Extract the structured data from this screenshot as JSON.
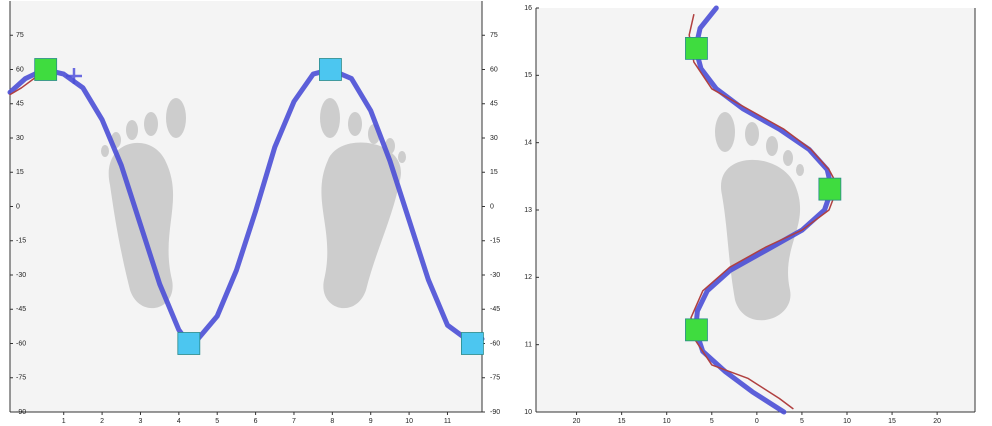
{
  "chart_data": [
    {
      "type": "line",
      "orientation": "horizontal",
      "xlim": [
        -0.4,
        11.9
      ],
      "ylim": [
        -90,
        90
      ],
      "xticks": [
        1,
        2,
        3,
        4,
        5,
        6,
        7,
        8,
        9,
        10,
        11
      ],
      "yticks": [
        -90,
        -75,
        -60,
        -45,
        -30,
        -15,
        0,
        15,
        30,
        45,
        60,
        75
      ],
      "series": [
        {
          "color": "#4b4fd6",
          "x": [
            -0.4,
            0,
            0.5,
            1,
            1.5,
            2,
            2.5,
            3,
            3.5,
            4,
            4.26,
            4.5,
            5,
            5.5,
            6,
            6.5,
            7,
            7.5,
            7.95,
            8.5,
            9,
            9.5,
            10,
            10.5,
            11,
            11.65,
            11.9
          ],
          "values": [
            50,
            56,
            60,
            58,
            52,
            38,
            18,
            -8,
            -34,
            -54,
            -60,
            -58,
            -48,
            -28,
            -2,
            26,
            46,
            58,
            60,
            56,
            42,
            20,
            -6,
            -32,
            -52,
            -60,
            -58
          ]
        },
        {
          "color": "#b04040",
          "x": [
            -0.4,
            -0.1,
            0.3
          ],
          "values": [
            49,
            52,
            57
          ]
        }
      ],
      "points": {
        "x": [
          0.53,
          4.26,
          7.95,
          11.65
        ],
        "values": [
          60,
          -60,
          60,
          -60
        ],
        "colors": [
          "#3fdc3f",
          "#4cc6f0",
          "#4cc6f0",
          "#4cc6f0"
        ]
      }
    },
    {
      "type": "line",
      "orientation": "vertical",
      "xlim": [
        -24.5,
        24.2
      ],
      "ylim": [
        10,
        16
      ],
      "xticks": [
        {
          "value": -20,
          "label": "20"
        },
        {
          "value": -15,
          "label": "15"
        },
        {
          "value": -10,
          "label": "10"
        },
        {
          "value": -5,
          "label": "5"
        },
        0,
        5,
        10,
        15,
        20
      ],
      "yticks": [
        10,
        11,
        12,
        13,
        14,
        15,
        16
      ],
      "series": [
        {
          "color": "#4b4fd6",
          "y": [
            16.0,
            15.7,
            15.4,
            15.1,
            14.8,
            14.5,
            14.2,
            13.9,
            13.6,
            13.31,
            13.0,
            12.7,
            12.4,
            12.1,
            11.8,
            11.5,
            11.22,
            10.9,
            10.6,
            10.3,
            10.0
          ],
          "values": [
            -4.5,
            -6.3,
            -6.8,
            -6.2,
            -4.5,
            -1.5,
            2.5,
            5.8,
            7.8,
            8.3,
            7.5,
            5.0,
            1.0,
            -3,
            -5.5,
            -6.6,
            -6.8,
            -6,
            -3.5,
            -0.5,
            3.0
          ]
        },
        {
          "color": "#b04040",
          "y": [
            15.9,
            15.6,
            15.2,
            14.8,
            14.5,
            14.2,
            13.9,
            13.6,
            13.35,
            13.0,
            12.7,
            12.45,
            12.15,
            11.8,
            11.4,
            11.1,
            10.7,
            10.5,
            10.2,
            10.05
          ],
          "values": [
            -7,
            -7.5,
            -7,
            -5,
            -1,
            3,
            6,
            8,
            9,
            8,
            5,
            1,
            -3,
            -6,
            -7.3,
            -7,
            -5,
            -1,
            2.5,
            4
          ]
        }
      ],
      "points": {
        "y": [
          15.4,
          13.31,
          11.22
        ],
        "values": [
          -6.7,
          8.1,
          -6.7
        ],
        "colors": [
          "#3fdc3f",
          "#3fdc3f",
          "#3fdc3f"
        ]
      }
    }
  ]
}
